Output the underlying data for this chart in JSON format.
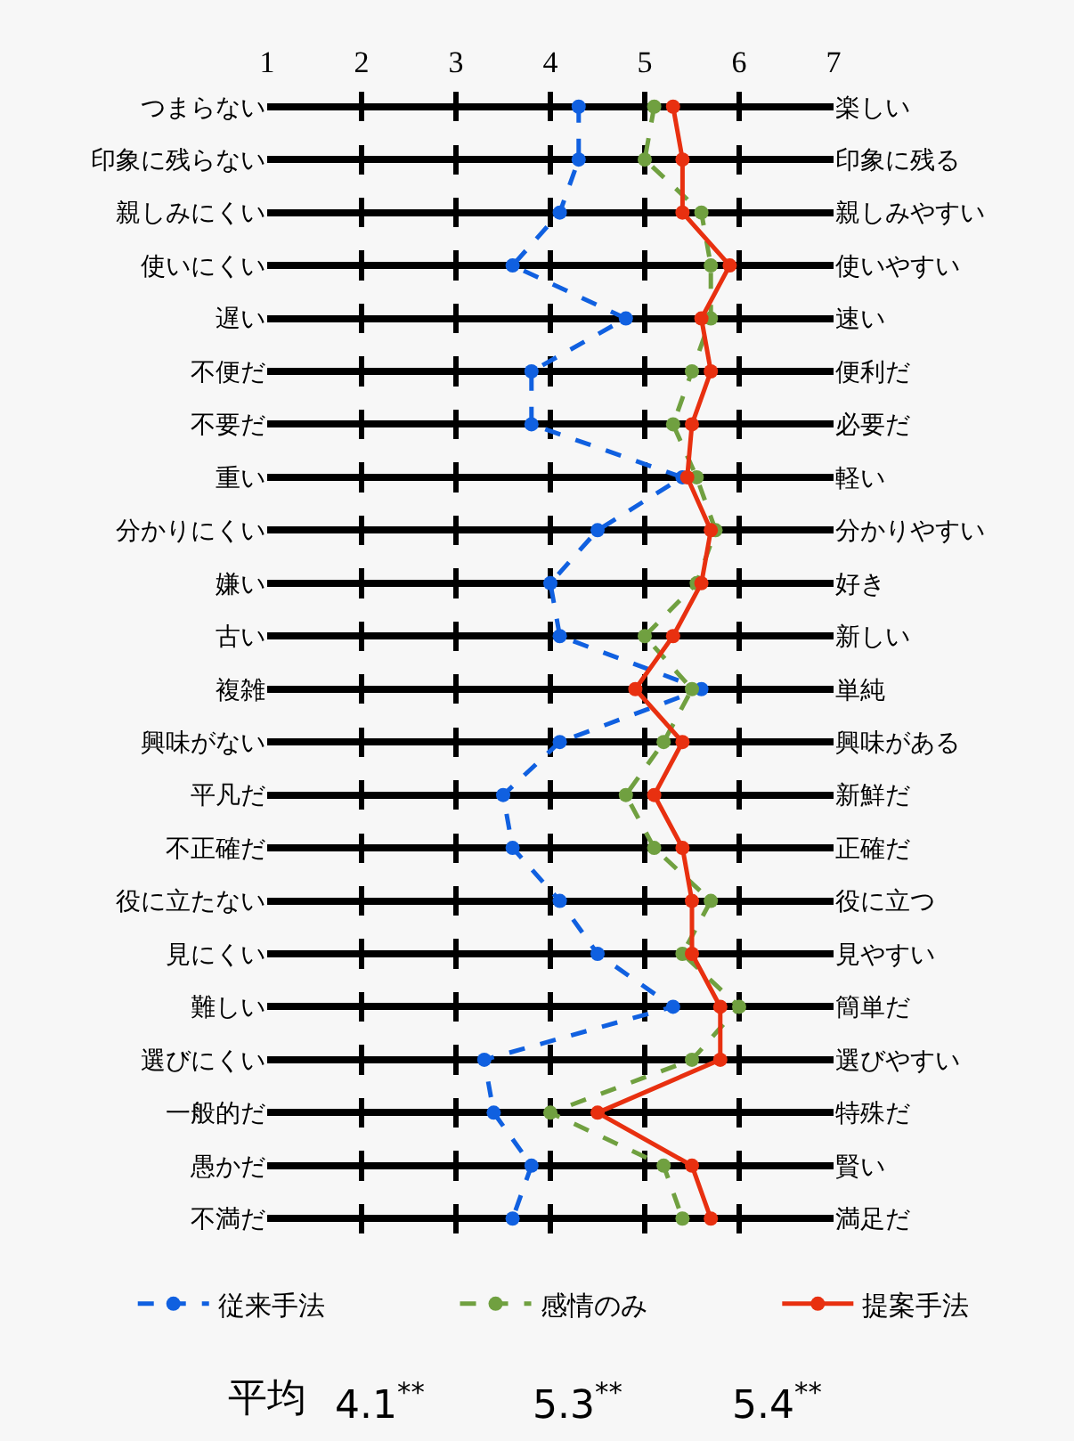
{
  "chart_data": {
    "type": "line",
    "orientation": "horizontal",
    "categories": [
      "つまらない",
      "印象に残らない",
      "親しみにくい",
      "使いにくい",
      "遅い",
      "不便だ",
      "不要だ",
      "重い",
      "分かりにくい",
      "嫌い",
      "古い",
      "複雑",
      "興味がない",
      "平凡だ",
      "不正確だ",
      "役に立たない",
      "見にくい",
      "難しい",
      "選びにくい",
      "一般的だ",
      "愚かだ",
      "不満だ"
    ],
    "y2_categories": [
      "楽しい",
      "印象に残る",
      "親しみやすい",
      "使いやすい",
      "速い",
      "便利だ",
      "必要だ",
      "軽い",
      "分かりやすい",
      "好き",
      "新しい",
      "単純",
      "興味がある",
      "新鮮だ",
      "正確だ",
      "役に立つ",
      "見やすい",
      "簡単だ",
      "選びやすい",
      "特殊だ",
      "賢い",
      "満足だ"
    ],
    "series": [
      {
        "name": "従来手法",
        "color": "#1060e0",
        "line_style": "dashed",
        "values": [
          4.3,
          4.3,
          4.1,
          3.6,
          4.8,
          3.8,
          3.8,
          5.4,
          4.5,
          4.0,
          4.1,
          5.6,
          4.1,
          3.5,
          3.6,
          4.1,
          4.5,
          5.3,
          3.3,
          3.4,
          3.8,
          3.6
        ]
      },
      {
        "name": "感情のみ",
        "color": "#70a040",
        "line_style": "dashed",
        "values": [
          5.1,
          5.0,
          5.6,
          5.7,
          5.7,
          5.5,
          5.3,
          5.55,
          5.75,
          5.55,
          5.0,
          5.5,
          5.2,
          4.8,
          5.1,
          5.7,
          5.4,
          6.0,
          5.5,
          4.0,
          5.2,
          5.4
        ]
      },
      {
        "name": "提案手法",
        "color": "#e83010",
        "line_style": "solid",
        "values": [
          5.3,
          5.4,
          5.4,
          5.9,
          5.6,
          5.7,
          5.5,
          5.45,
          5.7,
          5.6,
          5.3,
          4.9,
          5.4,
          5.1,
          5.4,
          5.5,
          5.5,
          5.8,
          5.8,
          4.5,
          5.5,
          5.7
        ]
      }
    ],
    "xlim": [
      1,
      7
    ],
    "xticks": [
      1,
      2,
      3,
      4,
      5,
      6,
      7
    ],
    "grid": true,
    "marker": "circle",
    "legend": "bottom",
    "annotations": [
      "平均",
      "4.1$^{**}$",
      "5.3$^{**}$",
      "5.4$^{**}$"
    ]
  }
}
